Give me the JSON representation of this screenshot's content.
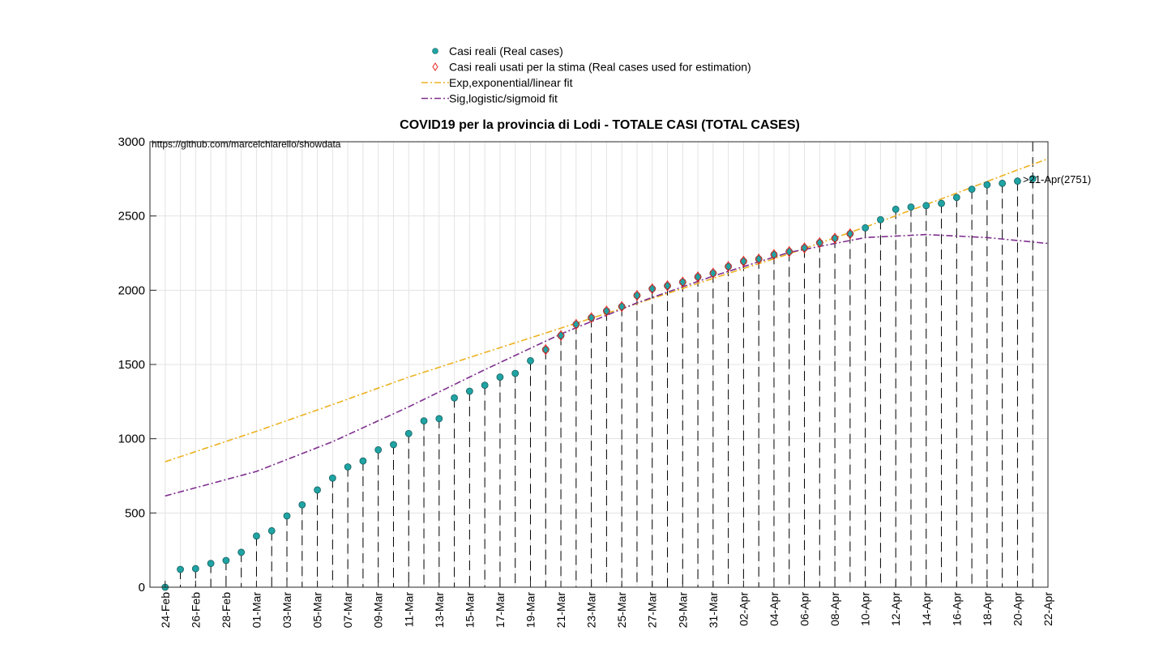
{
  "chart_data": {
    "type": "scatter",
    "title": "COVID19 per la provincia di Lodi - TOTALE CASI (TOTAL CASES)",
    "xlabel": "",
    "ylabel": "",
    "source_text": "https://github.com/marcelchiarello/showdata",
    "last_point_label": ">21-Apr(2751)",
    "ylim": [
      0,
      3000
    ],
    "yticks": [
      0,
      500,
      1000,
      1500,
      2000,
      2500,
      3000
    ],
    "xlim": [
      "23-Feb",
      "22-Apr"
    ],
    "xtick_labels": [
      "24-Feb",
      "26-Feb",
      "28-Feb",
      "01-Mar",
      "03-Mar",
      "05-Mar",
      "07-Mar",
      "09-Mar",
      "11-Mar",
      "13-Mar",
      "15-Mar",
      "17-Mar",
      "19-Mar",
      "21-Mar",
      "23-Mar",
      "25-Mar",
      "27-Mar",
      "29-Mar",
      "31-Mar",
      "02-Apr",
      "04-Apr",
      "06-Apr",
      "08-Apr",
      "10-Apr",
      "12-Apr",
      "14-Apr",
      "16-Apr",
      "18-Apr",
      "20-Apr",
      "22-Apr"
    ],
    "grid": true,
    "legend_position": "above-plot",
    "legend": [
      {
        "label": "Casi reali (Real cases)",
        "color": "#1fa3a3",
        "marker": "circle"
      },
      {
        "label": "Casi reali usati per la stima (Real cases used for estimation)",
        "color": "#e8231f",
        "marker": "diamond"
      },
      {
        "label": "Exp,exponential/linear fit",
        "color": "#edb120",
        "style": "dashdot"
      },
      {
        "label": "Sig,logistic/sigmoid fit",
        "color": "#7e2f8e",
        "style": "dashdot"
      }
    ],
    "series": [
      {
        "name": "Casi reali (Real cases)",
        "x": [
          "24-Feb",
          "25-Feb",
          "26-Feb",
          "27-Feb",
          "28-Feb",
          "29-Feb",
          "01-Mar",
          "02-Mar",
          "03-Mar",
          "04-Mar",
          "05-Mar",
          "06-Mar",
          "07-Mar",
          "08-Mar",
          "09-Mar",
          "10-Mar",
          "11-Mar",
          "12-Mar",
          "13-Mar",
          "14-Mar",
          "15-Mar",
          "16-Mar",
          "17-Mar",
          "18-Mar",
          "19-Mar",
          "20-Mar",
          "21-Mar",
          "22-Mar",
          "23-Mar",
          "24-Mar",
          "25-Mar",
          "26-Mar",
          "27-Mar",
          "28-Mar",
          "29-Mar",
          "30-Mar",
          "31-Mar",
          "01-Apr",
          "02-Apr",
          "03-Apr",
          "04-Apr",
          "05-Apr",
          "06-Apr",
          "07-Apr",
          "08-Apr",
          "09-Apr",
          "10-Apr",
          "11-Apr",
          "12-Apr",
          "13-Apr",
          "14-Apr",
          "15-Apr",
          "16-Apr",
          "17-Apr",
          "18-Apr",
          "19-Apr",
          "20-Apr",
          "21-Apr"
        ],
        "values": [
          0,
          120,
          125,
          160,
          180,
          235,
          345,
          380,
          480,
          555,
          655,
          735,
          810,
          850,
          925,
          960,
          1035,
          1120,
          1135,
          1275,
          1320,
          1360,
          1415,
          1440,
          1525,
          1600,
          1695,
          1770,
          1815,
          1860,
          1890,
          1965,
          2010,
          2030,
          2055,
          2090,
          2115,
          2160,
          2195,
          2210,
          2240,
          2260,
          2285,
          2320,
          2350,
          2380,
          2420,
          2475,
          2545,
          2560,
          2570,
          2585,
          2625,
          2680,
          2710,
          2720,
          2735,
          2751
        ],
        "color": "#1fa3a3"
      },
      {
        "name": "Casi reali usati per la stima (Real cases used for estimation)",
        "x": [
          "20-Mar",
          "21-Mar",
          "22-Mar",
          "23-Mar",
          "24-Mar",
          "25-Mar",
          "26-Mar",
          "27-Mar",
          "28-Mar",
          "29-Mar",
          "30-Mar",
          "31-Mar",
          "01-Apr",
          "02-Apr",
          "03-Apr",
          "04-Apr",
          "05-Apr",
          "06-Apr",
          "07-Apr",
          "08-Apr",
          "09-Apr"
        ],
        "values": [
          1600,
          1695,
          1770,
          1815,
          1860,
          1890,
          1965,
          2010,
          2030,
          2055,
          2090,
          2115,
          2160,
          2195,
          2210,
          2240,
          2260,
          2285,
          2320,
          2350,
          2380
        ],
        "color": "#e8231f"
      },
      {
        "name": "Exp,exponential/linear fit",
        "x": [
          "24-Feb",
          "01-Mar",
          "06-Mar",
          "11-Mar",
          "16-Mar",
          "21-Mar",
          "26-Mar",
          "31-Mar",
          "05-Apr",
          "10-Apr",
          "15-Apr",
          "20-Apr",
          "22-Apr"
        ],
        "values": [
          845,
          1050,
          1230,
          1415,
          1580,
          1745,
          1910,
          2080,
          2245,
          2425,
          2615,
          2810,
          2885
        ],
        "color": "#edb120"
      },
      {
        "name": "Sig,logistic/sigmoid fit",
        "x": [
          "24-Feb",
          "01-Mar",
          "06-Mar",
          "11-Mar",
          "16-Mar",
          "21-Mar",
          "26-Mar",
          "31-Mar",
          "05-Apr",
          "10-Apr",
          "14-Apr",
          "18-Apr",
          "22-Apr"
        ],
        "values": [
          615,
          780,
          980,
          1215,
          1465,
          1705,
          1915,
          2095,
          2255,
          2355,
          2375,
          2355,
          2315
        ],
        "color": "#7e2f8e"
      }
    ]
  }
}
